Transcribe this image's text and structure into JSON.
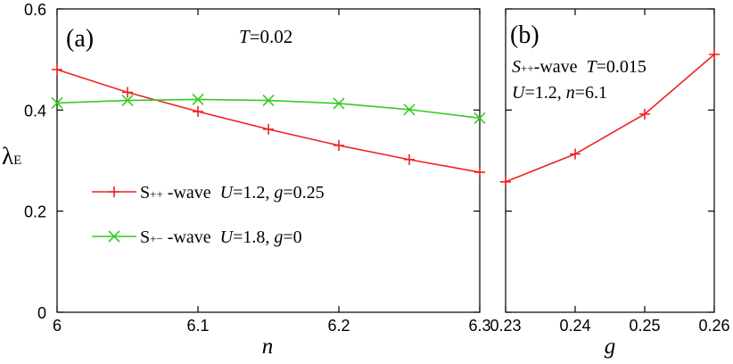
{
  "chart_data": [
    {
      "panel_label": "(a)",
      "type": "line",
      "annotation_var": "T",
      "annotation_val": "=0.02",
      "xlabel": "n",
      "ylabel": "λ",
      "ylabel_sub": "E",
      "xlim": [
        6,
        6.3
      ],
      "ylim": [
        0,
        0.6
      ],
      "x_ticks": [
        6,
        6.1,
        6.2,
        6.3
      ],
      "x_tick_labels": [
        "6",
        "6.1",
        "6.2",
        "6.3"
      ],
      "y_ticks": [
        0,
        0.2,
        0.4,
        0.6
      ],
      "y_tick_labels": [
        "0",
        "0.2",
        "0.4",
        "0.6"
      ],
      "series": [
        {
          "name": "S++ -wave U=1.2, g=0.25",
          "legend": {
            "base": "S",
            "sup": "++",
            "suffix": " -wave  ",
            "p1v": "U",
            "p1n": "=1.2, ",
            "p2v": "g",
            "p2n": "=0.25"
          },
          "color": "#ee2222",
          "marker": "plus",
          "x": [
            6.0,
            6.05,
            6.1,
            6.15,
            6.2,
            6.25,
            6.3
          ],
          "y": [
            0.48,
            0.435,
            0.397,
            0.362,
            0.33,
            0.302,
            0.277
          ]
        },
        {
          "name": "S+- -wave U=1.8, g=0",
          "legend": {
            "base": "S",
            "sup": "+−",
            "suffix": " -wave  ",
            "p1v": "U",
            "p1n": "=1.8, ",
            "p2v": "g",
            "p2n": "=0"
          },
          "color": "#33cc22",
          "marker": "cross",
          "x": [
            6.0,
            6.05,
            6.1,
            6.15,
            6.2,
            6.25,
            6.3
          ],
          "y": [
            0.414,
            0.419,
            0.421,
            0.419,
            0.413,
            0.401,
            0.384
          ]
        }
      ]
    },
    {
      "panel_label": "(b)",
      "type": "line",
      "annotation_line1": {
        "base": "S",
        "sup": "++",
        "suffix": "-wave  ",
        "var": "T",
        "val": "=0.015"
      },
      "annotation_line2": {
        "v1": "U",
        "n1": "=1.2, ",
        "v2": "n",
        "n2": "=6.1"
      },
      "xlabel": "g",
      "xlim": [
        0.23,
        0.26
      ],
      "ylim": [
        0,
        0.6
      ],
      "x_ticks": [
        0.23,
        0.24,
        0.25,
        0.26
      ],
      "x_tick_labels": [
        "0.23",
        "0.24",
        "0.25",
        "0.26"
      ],
      "series": [
        {
          "name": "S++ -wave",
          "color": "#ee2222",
          "marker": "plus",
          "x": [
            0.23,
            0.24,
            0.25,
            0.26
          ],
          "y": [
            0.258,
            0.313,
            0.392,
            0.51
          ]
        }
      ]
    }
  ]
}
